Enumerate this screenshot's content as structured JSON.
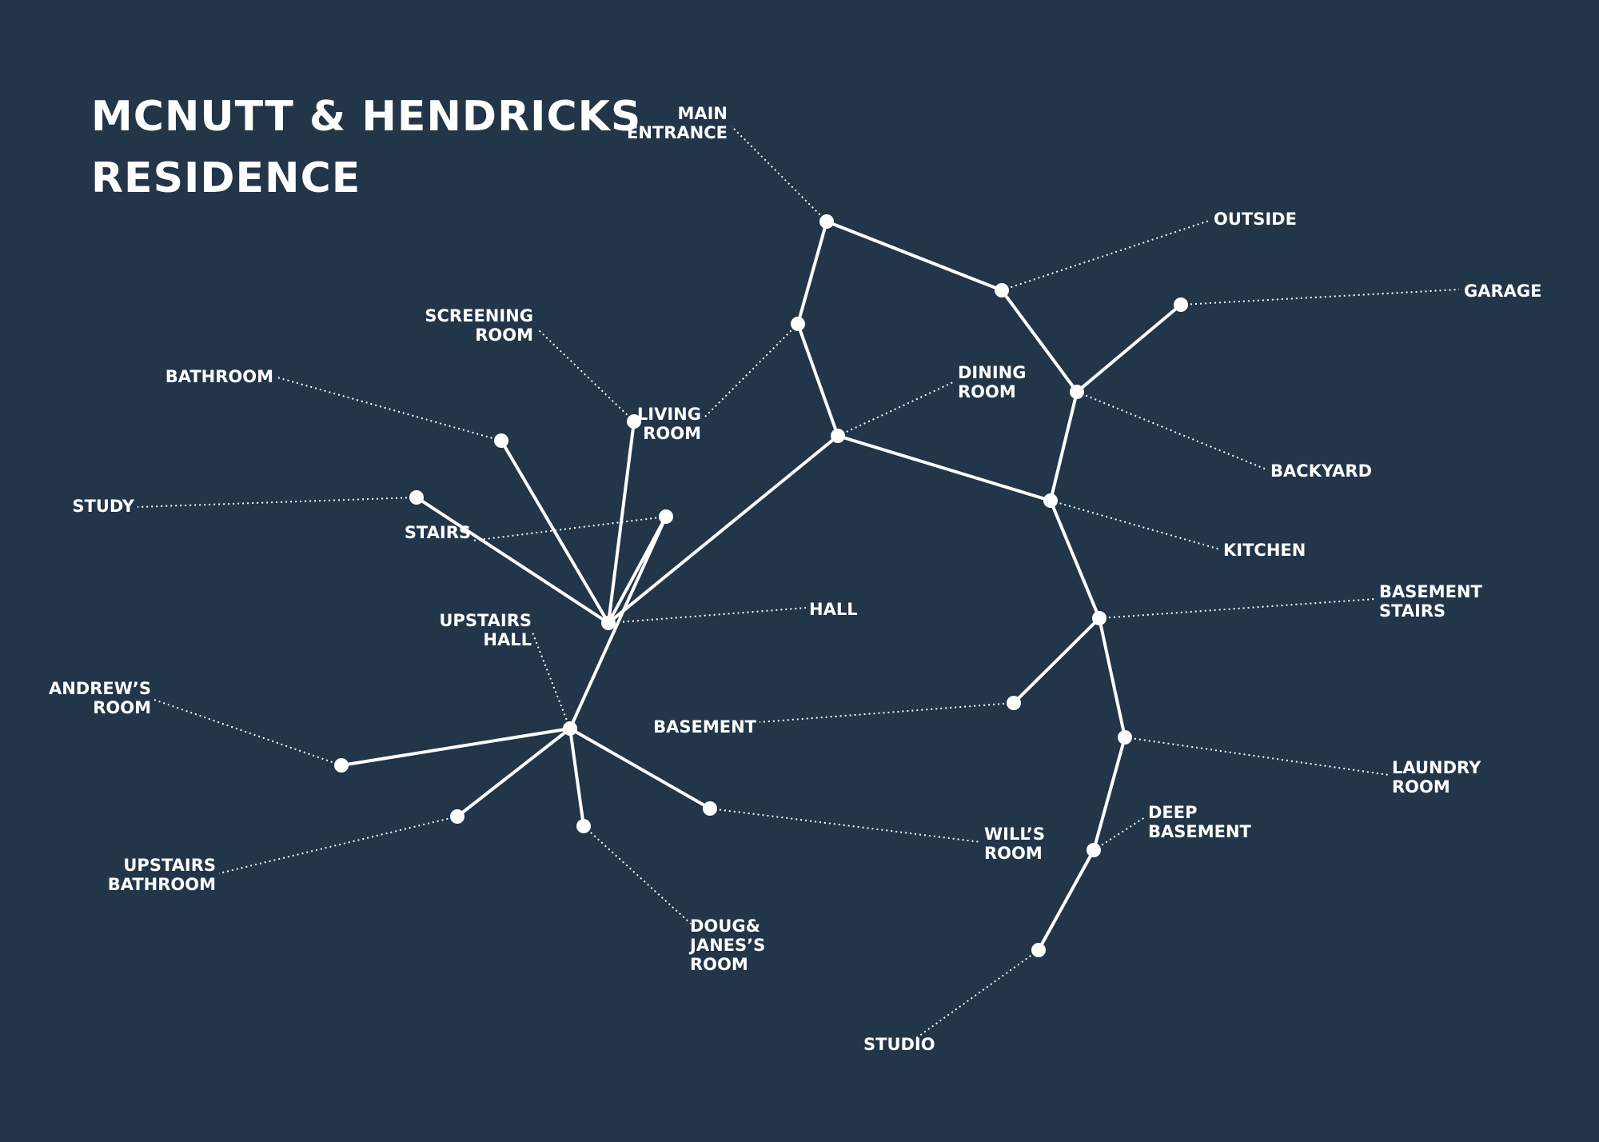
{
  "title": {
    "line1": "MCNUTT & HENDRICKS",
    "line2": "RESIDENCE"
  },
  "colors": {
    "background": "#223549",
    "ink": "#ffffff"
  },
  "rooms": [
    {
      "id": "main-entrance",
      "lines": [
        "MAIN",
        "ENTRANCE"
      ]
    },
    {
      "id": "outside",
      "lines": [
        "OUTSIDE"
      ]
    },
    {
      "id": "garage",
      "lines": [
        "GARAGE"
      ]
    },
    {
      "id": "screening-room",
      "lines": [
        "SCREENING",
        "ROOM"
      ]
    },
    {
      "id": "bathroom",
      "lines": [
        "BATHROOM"
      ]
    },
    {
      "id": "living-room",
      "lines": [
        "LIVING",
        "ROOM"
      ]
    },
    {
      "id": "dining-room",
      "lines": [
        "DINING",
        "ROOM"
      ]
    },
    {
      "id": "backyard",
      "lines": [
        "BACKYARD"
      ]
    },
    {
      "id": "study",
      "lines": [
        "STUDY"
      ]
    },
    {
      "id": "stairs",
      "lines": [
        "STAIRS"
      ]
    },
    {
      "id": "kitchen",
      "lines": [
        "KITCHEN"
      ]
    },
    {
      "id": "hall",
      "lines": [
        "HALL"
      ]
    },
    {
      "id": "basement-stairs",
      "lines": [
        "BASEMENT",
        "STAIRS"
      ]
    },
    {
      "id": "upstairs-hall",
      "lines": [
        "UPSTAIRS",
        "HALL"
      ]
    },
    {
      "id": "andrews-room",
      "lines": [
        "ANDREW’S",
        "ROOM"
      ]
    },
    {
      "id": "basement",
      "lines": [
        "BASEMENT"
      ]
    },
    {
      "id": "laundry-room",
      "lines": [
        "LAUNDRY",
        "ROOM"
      ]
    },
    {
      "id": "deep-basement",
      "lines": [
        "DEEP",
        "BASEMENT"
      ]
    },
    {
      "id": "wills-room",
      "lines": [
        "WILL’S",
        "ROOM"
      ]
    },
    {
      "id": "upstairs-bathroom",
      "lines": [
        "UPSTAIRS",
        "BATHROOM"
      ]
    },
    {
      "id": "doug-janes-room",
      "lines": [
        "DOUG&",
        "JANES’S",
        "ROOM"
      ]
    },
    {
      "id": "studio",
      "lines": [
        "STUDIO"
      ]
    }
  ],
  "connections": [
    [
      "main-entrance",
      "outside"
    ],
    [
      "main-entrance",
      "living-room"
    ],
    [
      "living-room",
      "dining-room"
    ],
    [
      "outside",
      "backyard"
    ],
    [
      "garage",
      "backyard"
    ],
    [
      "backyard",
      "kitchen"
    ],
    [
      "dining-room",
      "kitchen"
    ],
    [
      "dining-room",
      "hall"
    ],
    [
      "hall",
      "screening-room"
    ],
    [
      "hall",
      "bathroom"
    ],
    [
      "hall",
      "study"
    ],
    [
      "hall",
      "stairs"
    ],
    [
      "stairs",
      "upstairs-hall"
    ],
    [
      "upstairs-hall",
      "andrews-room"
    ],
    [
      "upstairs-hall",
      "upstairs-bathroom"
    ],
    [
      "upstairs-hall",
      "doug-janes-room"
    ],
    [
      "upstairs-hall",
      "wills-room"
    ],
    [
      "kitchen",
      "basement-stairs"
    ],
    [
      "basement-stairs",
      "basement"
    ],
    [
      "basement-stairs",
      "laundry-room"
    ],
    [
      "laundry-room",
      "deep-basement"
    ],
    [
      "deep-basement",
      "studio"
    ]
  ]
}
